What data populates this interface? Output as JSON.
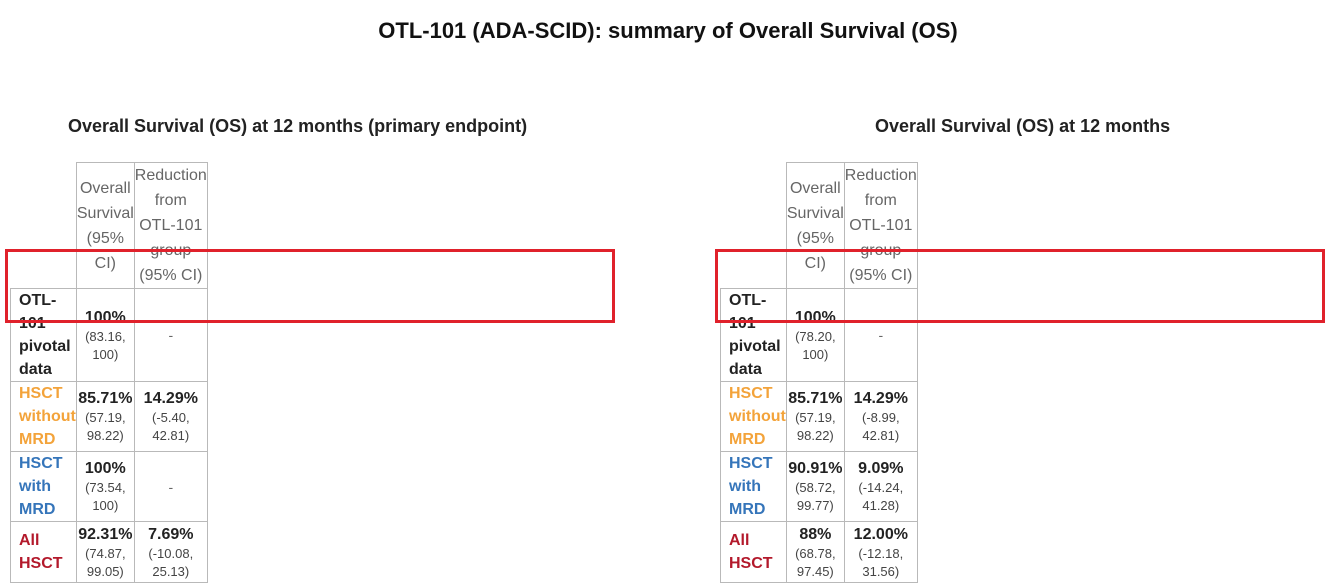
{
  "title": "OTL-101 (ADA-SCID): summary of Overall Survival (OS)",
  "colors": {
    "highlight": "#e0212b",
    "hsct_without_mrd": "#f3a33a",
    "hsct_with_mrd": "#3575ba",
    "all_hsct": "#b3192b"
  },
  "panels": [
    {
      "subtitle": "Overall Survival (OS) at 12 months (primary endpoint)",
      "col1_line1": "Overall Survival",
      "col1_line2": "(95% CI)",
      "col2_line1": "Reduction from",
      "col2_line2": "OTL-101 group",
      "col2_line3": "(95% CI)",
      "rows": [
        {
          "label1": "OTL-101",
          "label2": "pivotal data",
          "os": "100%",
          "os_ci": "(83.16, 100)",
          "red": "",
          "red_ci": "",
          "dash": "-"
        },
        {
          "label": "HSCT without MRD",
          "os": "85.71%",
          "os_ci": "(57.19, 98.22)",
          "red": "14.29%",
          "red_ci": "(-5.40, 42.81)"
        },
        {
          "label": "HSCT with MRD",
          "os": "100%",
          "os_ci": "(73.54, 100)",
          "red": "",
          "red_ci": "",
          "dash": "-"
        },
        {
          "label": "All HSCT",
          "os": "92.31%",
          "os_ci": "(74.87, 99.05)",
          "red": "7.69%",
          "red_ci": "(-10.08, 25.13)"
        }
      ]
    },
    {
      "subtitle": "Overall Survival (OS) at 12 months",
      "col1_line1": "Overall Survival",
      "col1_line2": "(95% CI)",
      "col2_line1": "Reduction from",
      "col2_line2": "OTL-101 group",
      "col2_line3": "(95% CI)",
      "rows": [
        {
          "label1": "OTL-101",
          "label2": "pivotal data",
          "os": "100%",
          "os_ci": "(78.20, 100)",
          "red": "",
          "red_ci": "",
          "dash": "-"
        },
        {
          "label": "HSCT without MRD",
          "os": "85.71%",
          "os_ci": "(57.19, 98.22)",
          "red": "14.29%",
          "red_ci": "(-8.99, 42.81)"
        },
        {
          "label": "HSCT with MRD",
          "os": "90.91%",
          "os_ci": "(58.72, 99.77)",
          "red": "9.09%",
          "red_ci": "(-14.24, 41.28)"
        },
        {
          "label": "All HSCT",
          "os": "88%",
          "os_ci": "(68.78, 97.45)",
          "red": "12.00%",
          "red_ci": "(-12.18, 31.56)"
        }
      ]
    }
  ]
}
